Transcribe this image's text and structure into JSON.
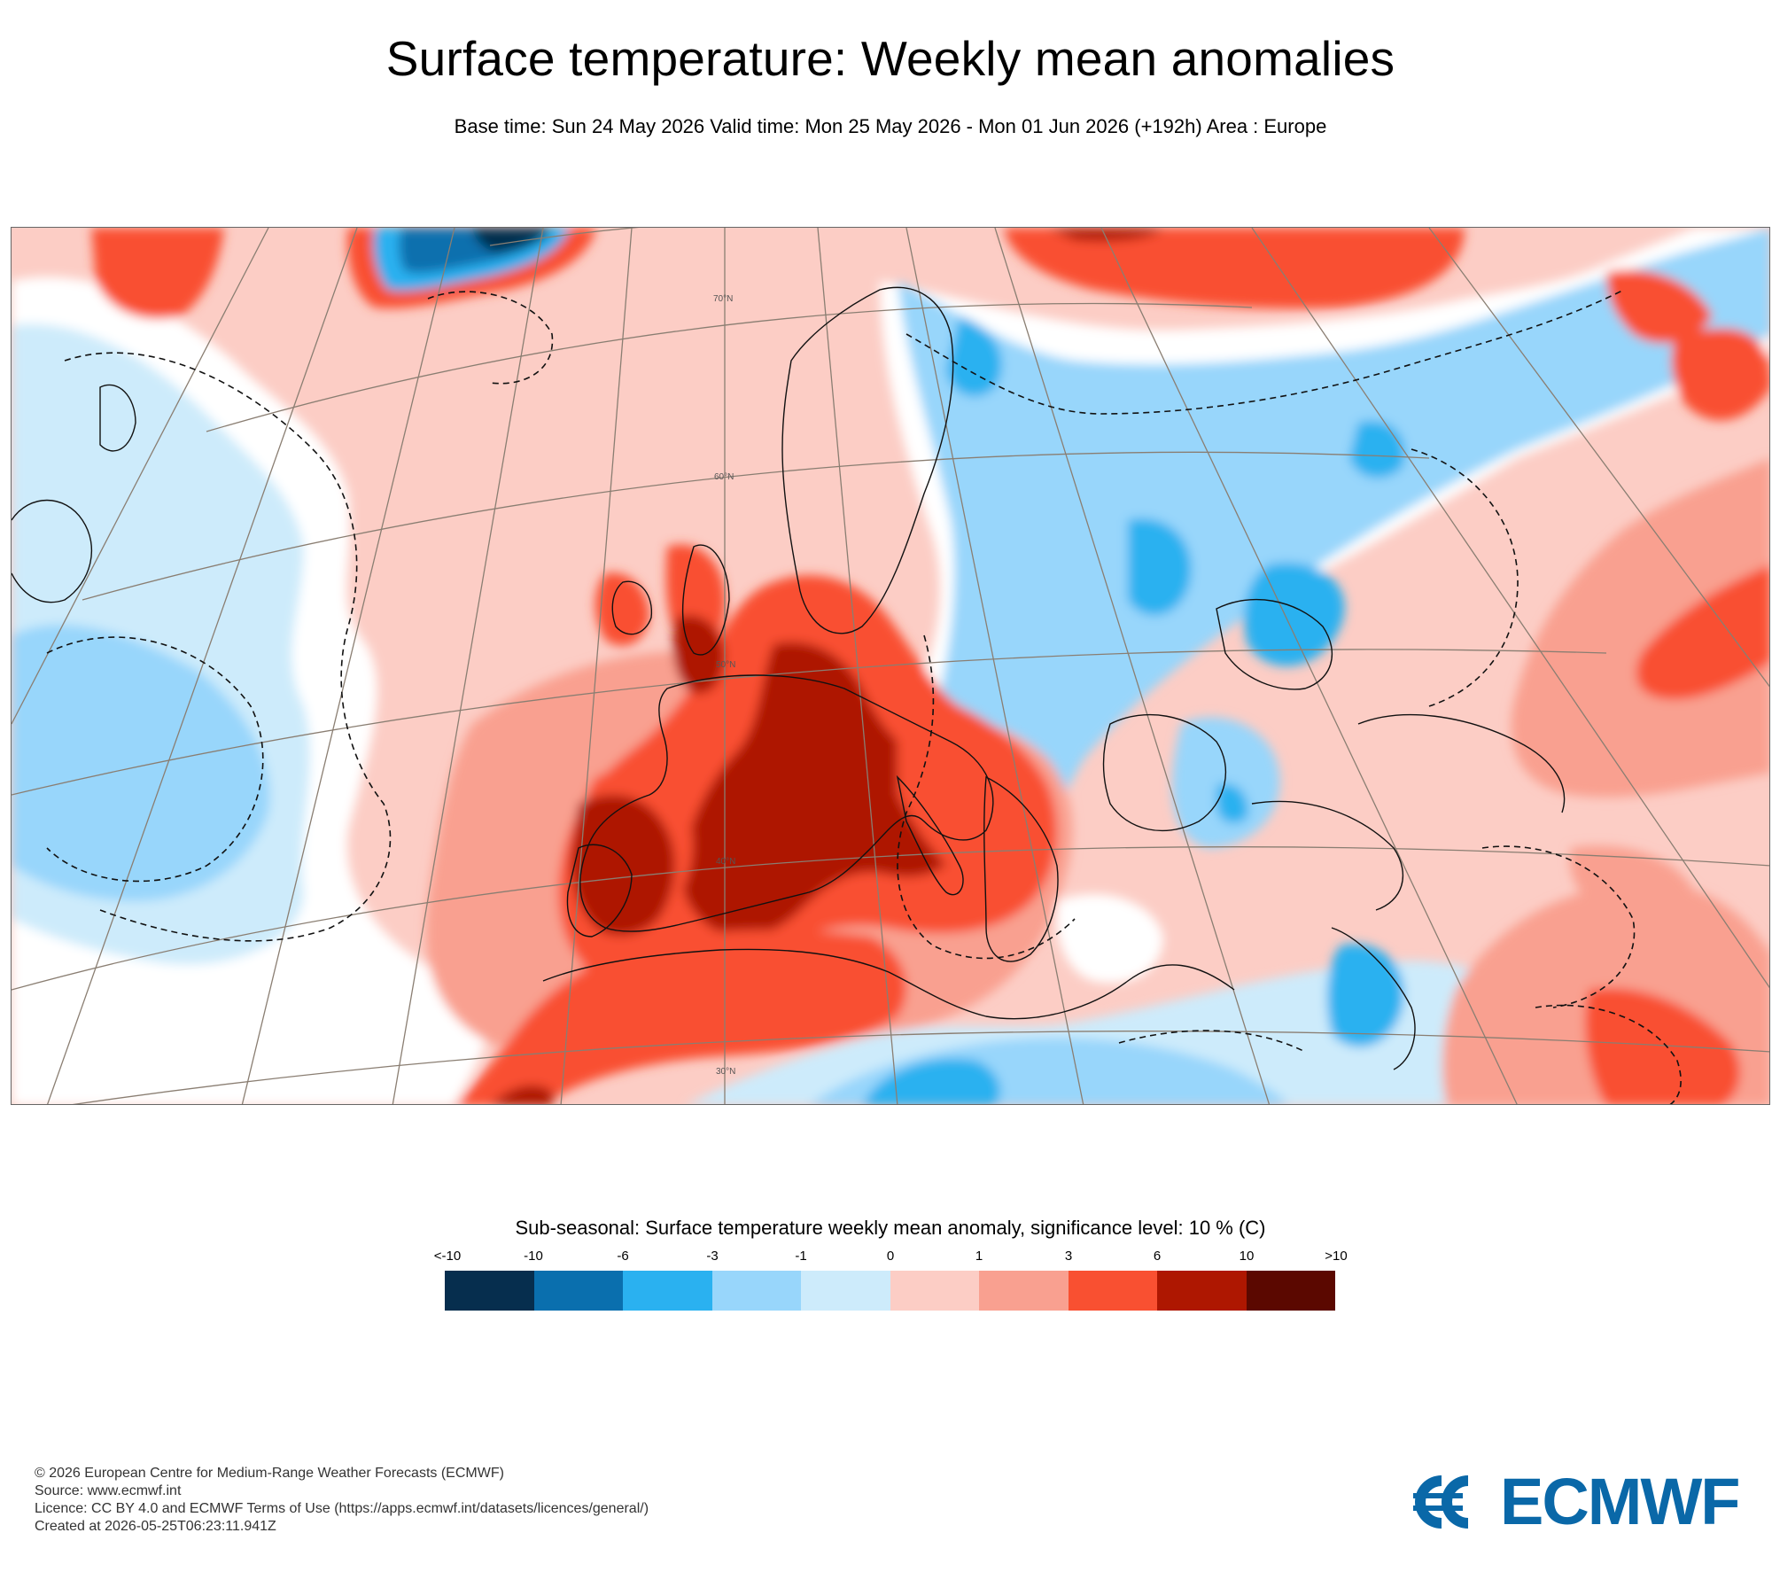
{
  "header": {
    "title": "Surface temperature: Weekly mean anomalies",
    "subtitle": "Base time: Sun 24 May 2026 Valid time: Mon 25 May 2026 - Mon 01 Jun 2026 (+192h) Area : Europe"
  },
  "map": {
    "latitude_labels": [
      "70°N",
      "60°N",
      "50°N",
      "40°N",
      "30°N"
    ]
  },
  "legend": {
    "title": "Sub-seasonal: Surface temperature weekly mean anomaly, significance level: 10 % (C)",
    "ticks": [
      "<-10",
      "-10",
      "-6",
      "-3",
      "-1",
      "0",
      "1",
      "3",
      "6",
      "10",
      ">10"
    ],
    "colors": [
      "#062e4e",
      "#0a6fae",
      "#2ab1f0",
      "#98d6fb",
      "#cdebfb",
      "#fccdc5",
      "#f9a090",
      "#f95031",
      "#ae1701",
      "#5b0800"
    ]
  },
  "footer": {
    "lines": [
      "© 2026 European Centre for Medium-Range Weather Forecasts (ECMWF)",
      "Source: www.ecmwf.int",
      "Licence: CC BY 4.0 and ECMWF Terms of Use (https://apps.ecmwf.int/datasets/licences/general/)",
      "Created at 2026-05-25T06:23:11.941Z"
    ]
  },
  "logo": {
    "text": "ECMWF",
    "color": "#0a68a8"
  }
}
